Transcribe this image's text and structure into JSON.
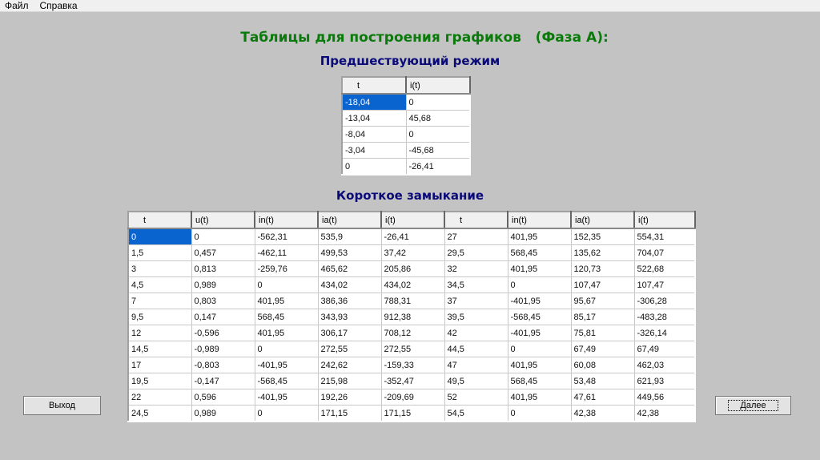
{
  "menu": {
    "items": [
      "Файл",
      "Справка"
    ]
  },
  "title": "Таблицы для построения графиков   (Фаза А):",
  "prior": {
    "heading": "Предшествующий режим",
    "columns": [
      "t",
      "i(t)"
    ],
    "rows": [
      [
        "-18,04",
        "0"
      ],
      [
        "-13,04",
        "45,68"
      ],
      [
        "-8,04",
        "0"
      ],
      [
        "-3,04",
        "-45,68"
      ],
      [
        "0",
        "-26,41"
      ]
    ]
  },
  "short": {
    "heading": "Короткое замыкание",
    "columns": [
      "t",
      "u(t)",
      "in(t)",
      "ia(t)",
      "i(t)",
      "t",
      "in(t)",
      "ia(t)",
      "i(t)"
    ],
    "rows": [
      [
        "0",
        "0",
        "-562,31",
        "535,9",
        "-26,41",
        "27",
        "401,95",
        "152,35",
        "554,31"
      ],
      [
        "1,5",
        "0,457",
        "-462,11",
        "499,53",
        "37,42",
        "29,5",
        "568,45",
        "135,62",
        "704,07"
      ],
      [
        "3",
        "0,813",
        "-259,76",
        "465,62",
        "205,86",
        "32",
        "401,95",
        "120,73",
        "522,68"
      ],
      [
        "4,5",
        "0,989",
        "0",
        "434,02",
        "434,02",
        "34,5",
        "0",
        "107,47",
        "107,47"
      ],
      [
        "7",
        "0,803",
        "401,95",
        "386,36",
        "788,31",
        "37",
        "-401,95",
        "95,67",
        "-306,28"
      ],
      [
        "9,5",
        "0,147",
        "568,45",
        "343,93",
        "912,38",
        "39,5",
        "-568,45",
        "85,17",
        "-483,28"
      ],
      [
        "12",
        "-0,596",
        "401,95",
        "306,17",
        "708,12",
        "42",
        "-401,95",
        "75,81",
        "-326,14"
      ],
      [
        "14,5",
        "-0,989",
        "0",
        "272,55",
        "272,55",
        "44,5",
        "0",
        "67,49",
        "67,49"
      ],
      [
        "17",
        "-0,803",
        "-401,95",
        "242,62",
        "-159,33",
        "47",
        "401,95",
        "60,08",
        "462,03"
      ],
      [
        "19,5",
        "-0,147",
        "-568,45",
        "215,98",
        "-352,47",
        "49,5",
        "568,45",
        "53,48",
        "621,93"
      ],
      [
        "22",
        "0,596",
        "-401,95",
        "192,26",
        "-209,69",
        "52",
        "401,95",
        "47,61",
        "449,56"
      ],
      [
        "24,5",
        "0,989",
        "0",
        "171,15",
        "171,15",
        "54,5",
        "0",
        "42,38",
        "42,38"
      ]
    ]
  },
  "buttons": {
    "exit": "Выход",
    "next": "Далее"
  }
}
